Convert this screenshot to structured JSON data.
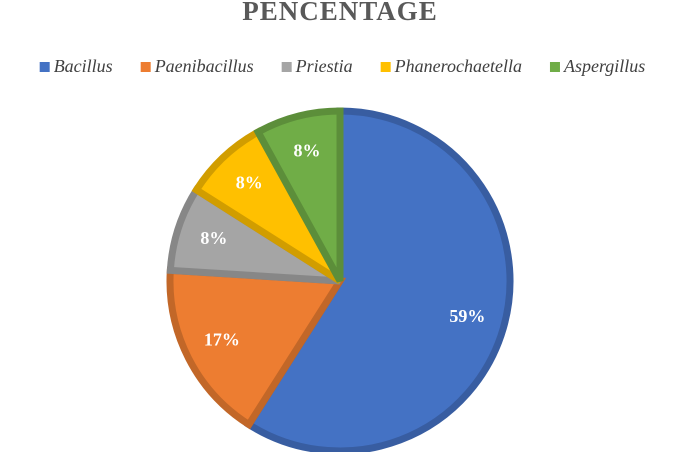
{
  "chart_data": {
    "type": "pie",
    "title": "PENCENTAGE",
    "categories": [
      "Bacillus",
      "Paenibacillus",
      "Priestia",
      "Phanerochaetella",
      "Aspergillus"
    ],
    "values": [
      59,
      17,
      8,
      8,
      8
    ],
    "value_labels": [
      "59%",
      "17%",
      "8%",
      "8%",
      "8%"
    ],
    "colors": [
      "#4472c4",
      "#ed7d31",
      "#a5a5a5",
      "#ffc000",
      "#70ad47"
    ],
    "legend": "top"
  }
}
